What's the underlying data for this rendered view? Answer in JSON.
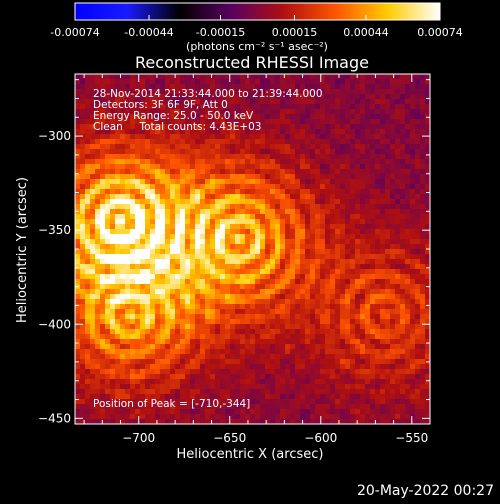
{
  "colorbar": {
    "ticks": [
      -0.00074,
      -0.00044,
      -0.00015,
      0.00015,
      0.00044,
      0.00074
    ],
    "tick_labels": [
      "-0.00074",
      "-0.00044",
      "-0.00015",
      "0.00015",
      "0.00044",
      "0.00074"
    ],
    "unit_label": "(photons cm⁻² s⁻¹ asec⁻²)",
    "range": [
      -0.00074,
      0.00074
    ],
    "stops": [
      "#0000ff",
      "#1a1aff",
      "#000000",
      "#5a0060",
      "#b01010",
      "#ff5500",
      "#ffcc00",
      "#ffffff"
    ]
  },
  "annotations": {
    "line1": "28-Nov-2014 21:33:44.000 to 21:39:44.000",
    "line2": "Detectors: 3F 6F 9F, Att 0",
    "line3": "Energy Range: 25.0 - 50.0 keV",
    "line4": "Clean     Total counts: 4.43E+03",
    "peak": "Position of Peak = [-710,-344]"
  },
  "footer": {
    "date": "20-May-2022 00:27"
  },
  "chart_data": {
    "type": "heatmap",
    "title": "Reconstructed RHESSI Image",
    "xlabel": "Heliocentric X (arcsec)",
    "ylabel": "Heliocentric Y (arcsec)",
    "xlim": [
      -735,
      -540
    ],
    "ylim": [
      -453,
      -267
    ],
    "x_ticks": [
      -700,
      -650,
      -600,
      -550
    ],
    "y_ticks": [
      -300,
      -350,
      -400,
      -450
    ],
    "peak": [
      -710,
      -344
    ],
    "colors": {
      "background": "#000000",
      "foreground": "#ffffff"
    },
    "sources": [
      {
        "x": -645,
        "y": -355,
        "peak_fraction": 0.85
      },
      {
        "x": -710,
        "y": -345,
        "peak_fraction": 1.0
      },
      {
        "x": -705,
        "y": -395,
        "peak_fraction": 0.7
      },
      {
        "x": -565,
        "y": -395,
        "peak_fraction": 0.45
      }
    ]
  }
}
